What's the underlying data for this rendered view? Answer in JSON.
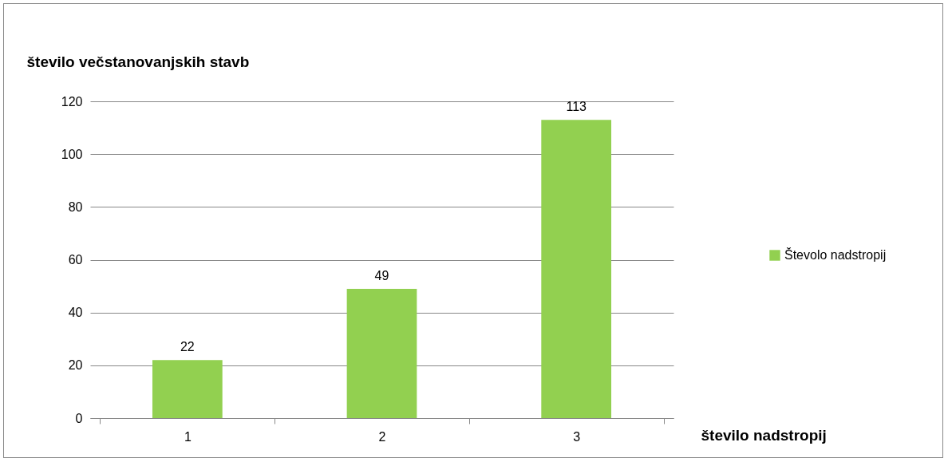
{
  "chart_data": {
    "type": "bar",
    "xlabel": "število nadstropij",
    "ylabel": "število večstanovanjskih stavb",
    "categories": [
      "1",
      "2",
      "3"
    ],
    "series": [
      {
        "name": "Števolo nadstropij",
        "color": "#92d050",
        "values": [
          22,
          49,
          113
        ]
      }
    ],
    "ylim": [
      0,
      120
    ],
    "yticks": [
      0,
      20,
      40,
      60,
      80,
      100,
      120
    ],
    "grid": "y",
    "legend": "right",
    "data_labels": true
  }
}
